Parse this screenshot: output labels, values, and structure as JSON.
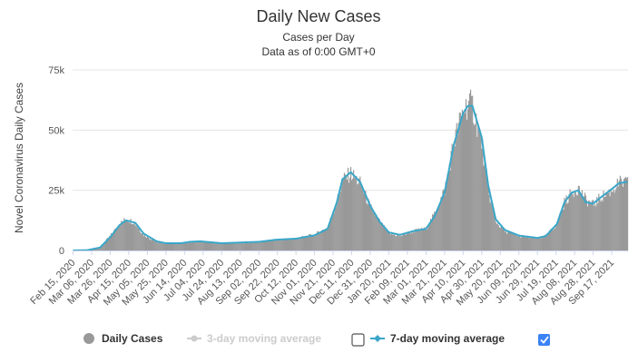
{
  "chart_data": {
    "type": "bar",
    "title": "Daily New Cases",
    "subtitle": "Cases per Day",
    "subtitle2": "Data as of 0:00 GMT+0",
    "ylabel": "Novel Coronavirus Daily Cases",
    "ylim": [
      0,
      75000
    ],
    "y_ticks": [
      "0",
      "25k",
      "50k",
      "75k"
    ],
    "y_tick_values": [
      0,
      25000,
      50000,
      75000
    ],
    "x_start": "2020-02-15",
    "x_end": "2021-10-04",
    "x_tick_labels": [
      "Feb 15, 2020",
      "Mar 06, 2020",
      "Mar 26, 2020",
      "Apr 15, 2020",
      "May 05, 2020",
      "May 25, 2020",
      "Jun 14, 2020",
      "Jul 04, 2020",
      "Jul 24, 2020",
      "Aug 13, 2020",
      "Sep 02, 2020",
      "Sep 22, 2020",
      "Oct 12, 2020",
      "Nov 01, 2020",
      "Nov 21, 2020",
      "Dec 11, 2020",
      "Dec 31, 2020",
      "Jan 20, 2021",
      "Feb 09, 2021",
      "Mar 01, 2021",
      "Mar 21, 2021",
      "Apr 10, 2021",
      "Apr 30, 2021",
      "May 20, 2021",
      "Jun 09, 2021",
      "Jun 29, 2021",
      "Jul 19, 2021",
      "Aug 08, 2021",
      "Aug 28, 2021",
      "Sep 17, 2021"
    ],
    "grid": true,
    "legend": "bottom",
    "series": [
      {
        "name": "Daily Cases",
        "type": "bar",
        "color": "#999999",
        "anchors": [
          [
            "2020-02-15",
            0
          ],
          [
            "2020-03-01",
            100
          ],
          [
            "2020-03-15",
            1500
          ],
          [
            "2020-03-26",
            6000
          ],
          [
            "2020-04-05",
            11000
          ],
          [
            "2020-04-12",
            13000
          ],
          [
            "2020-04-20",
            12000
          ],
          [
            "2020-05-01",
            6500
          ],
          [
            "2020-05-15",
            3500
          ],
          [
            "2020-05-25",
            3000
          ],
          [
            "2020-06-10",
            3000
          ],
          [
            "2020-06-20",
            3500
          ],
          [
            "2020-07-01",
            3800
          ],
          [
            "2020-07-24",
            3000
          ],
          [
            "2020-08-13",
            3200
          ],
          [
            "2020-09-02",
            3500
          ],
          [
            "2020-09-22",
            4500
          ],
          [
            "2020-10-12",
            5000
          ],
          [
            "2020-11-01",
            6500
          ],
          [
            "2020-11-15",
            9500
          ],
          [
            "2020-11-25",
            20000
          ],
          [
            "2020-12-01",
            29000
          ],
          [
            "2020-12-10",
            32000
          ],
          [
            "2020-12-20",
            28000
          ],
          [
            "2020-12-31",
            18000
          ],
          [
            "2021-01-10",
            12000
          ],
          [
            "2021-01-20",
            7000
          ],
          [
            "2021-02-01",
            6000
          ],
          [
            "2021-02-15",
            8000
          ],
          [
            "2021-03-01",
            9000
          ],
          [
            "2021-03-10",
            15000
          ],
          [
            "2021-03-21",
            25000
          ],
          [
            "2021-03-31",
            45000
          ],
          [
            "2021-04-10",
            58000
          ],
          [
            "2021-04-15",
            61000
          ],
          [
            "2021-04-20",
            60000
          ],
          [
            "2021-04-30",
            45000
          ],
          [
            "2021-05-07",
            25000
          ],
          [
            "2021-05-15",
            12000
          ],
          [
            "2021-05-25",
            8000
          ],
          [
            "2021-06-09",
            6000
          ],
          [
            "2021-06-29",
            5000
          ],
          [
            "2021-07-08",
            6000
          ],
          [
            "2021-07-20",
            11000
          ],
          [
            "2021-07-28",
            20000
          ],
          [
            "2021-08-05",
            24000
          ],
          [
            "2021-08-12",
            26000
          ],
          [
            "2021-08-20",
            21000
          ],
          [
            "2021-08-28",
            19000
          ],
          [
            "2021-09-05",
            22000
          ],
          [
            "2021-09-17",
            25000
          ],
          [
            "2021-09-25",
            28000
          ],
          [
            "2021-10-04",
            28000
          ]
        ]
      },
      {
        "name": "3-day moving average",
        "type": "line",
        "color": "#cccccc",
        "visible": false
      },
      {
        "name": "7-day moving average",
        "type": "line",
        "color": "#3aa7c9",
        "visible": true,
        "anchors": [
          [
            "2020-02-15",
            0
          ],
          [
            "2020-03-01",
            100
          ],
          [
            "2020-03-15",
            1200
          ],
          [
            "2020-03-26",
            5500
          ],
          [
            "2020-04-05",
            10500
          ],
          [
            "2020-04-12",
            12500
          ],
          [
            "2020-04-22",
            11500
          ],
          [
            "2020-05-01",
            7000
          ],
          [
            "2020-05-15",
            3800
          ],
          [
            "2020-05-25",
            3000
          ],
          [
            "2020-06-10",
            3000
          ],
          [
            "2020-06-20",
            3600
          ],
          [
            "2020-07-01",
            3800
          ],
          [
            "2020-07-24",
            3000
          ],
          [
            "2020-08-13",
            3300
          ],
          [
            "2020-09-02",
            3600
          ],
          [
            "2020-09-22",
            4500
          ],
          [
            "2020-10-12",
            4900
          ],
          [
            "2020-11-01",
            6300
          ],
          [
            "2020-11-15",
            9000
          ],
          [
            "2020-11-25",
            20000
          ],
          [
            "2020-12-01",
            29500
          ],
          [
            "2020-12-10",
            32500
          ],
          [
            "2020-12-20",
            28500
          ],
          [
            "2020-12-31",
            18500
          ],
          [
            "2021-01-10",
            12000
          ],
          [
            "2021-01-20",
            7500
          ],
          [
            "2021-02-01",
            6500
          ],
          [
            "2021-02-15",
            8000
          ],
          [
            "2021-03-01",
            9000
          ],
          [
            "2021-03-10",
            14000
          ],
          [
            "2021-03-21",
            24000
          ],
          [
            "2021-03-31",
            44000
          ],
          [
            "2021-04-10",
            57000
          ],
          [
            "2021-04-15",
            60000
          ],
          [
            "2021-04-20",
            60000
          ],
          [
            "2021-04-30",
            47000
          ],
          [
            "2021-05-07",
            27000
          ],
          [
            "2021-05-15",
            13000
          ],
          [
            "2021-05-25",
            8500
          ],
          [
            "2021-06-09",
            6200
          ],
          [
            "2021-06-29",
            5200
          ],
          [
            "2021-07-08",
            6000
          ],
          [
            "2021-07-20",
            11000
          ],
          [
            "2021-07-28",
            20000
          ],
          [
            "2021-08-05",
            24000
          ],
          [
            "2021-08-12",
            25000
          ],
          [
            "2021-08-20",
            20000
          ],
          [
            "2021-08-28",
            19500
          ],
          [
            "2021-09-05",
            22000
          ],
          [
            "2021-09-17",
            25500
          ],
          [
            "2021-09-25",
            28000
          ],
          [
            "2021-10-04",
            28500
          ]
        ]
      }
    ]
  },
  "legend": {
    "items": [
      {
        "label": "Daily Cases",
        "checkbox": false
      },
      {
        "label": "3-day moving average",
        "checkbox": true,
        "checked": false
      },
      {
        "label": "7-day moving average",
        "checkbox": true,
        "checked": true
      }
    ]
  }
}
